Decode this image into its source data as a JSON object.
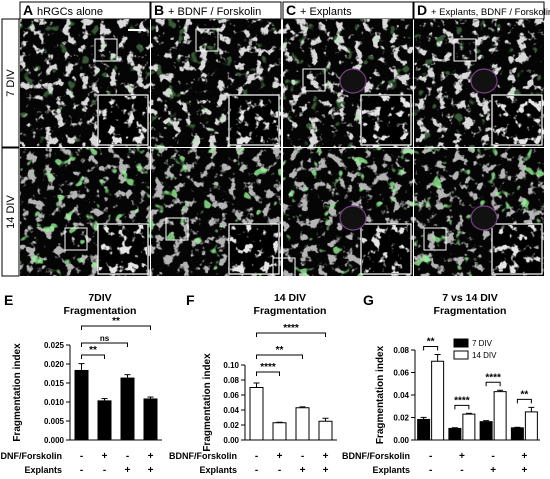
{
  "micrograph": {
    "columns": [
      {
        "letter": "A",
        "title": "hRGCs alone"
      },
      {
        "letter": "B",
        "title": "+ BDNF / Forskolin"
      },
      {
        "letter": "C",
        "title": "+ Explants"
      },
      {
        "letter": "D",
        "title": "+ Explants, BDNF / Forskolin"
      }
    ],
    "rows": [
      "7 DIV",
      "14 DIV"
    ]
  },
  "conditions": {
    "row1_label": "BDNF/Forskolin",
    "row2_label": "Explants",
    "row1_signs": [
      "-",
      "+",
      "-",
      "+"
    ],
    "row2_signs": [
      "-",
      "-",
      "+",
      "+"
    ]
  },
  "chart_data": [
    {
      "type": "bar",
      "panel": "E",
      "title": "7DIV",
      "subtitle": "Fragmentation",
      "ylabel": "Fragmentation index",
      "ylim": [
        0,
        0.025
      ],
      "yticks": [
        "0.000",
        "0.005",
        "0.010",
        "0.015",
        "0.020",
        "0.025"
      ],
      "values": [
        0.0183,
        0.0103,
        0.0163,
        0.0108
      ],
      "errors": [
        0.0018,
        0.0006,
        0.0009,
        0.0005
      ],
      "fill": "#000000",
      "significance": [
        {
          "from": 0,
          "to": 1,
          "label": "**"
        },
        {
          "from": 0,
          "to": 2,
          "label": "ns"
        },
        {
          "from": 0,
          "to": 3,
          "label": "**"
        }
      ]
    },
    {
      "type": "bar",
      "panel": "F",
      "title": "14 DIV",
      "subtitle": "Fragmentation",
      "ylabel": "Fragmentation index",
      "ylim": [
        0,
        0.1
      ],
      "yticks": [
        "0.00",
        "0.02",
        "0.04",
        "0.06",
        "0.08",
        "0.10"
      ],
      "values": [
        0.07,
        0.023,
        0.043,
        0.025
      ],
      "errors": [
        0.006,
        0.0007,
        0.0012,
        0.004
      ],
      "fill": "#ffffff",
      "significance": [
        {
          "from": 0,
          "to": 1,
          "label": "****"
        },
        {
          "from": 0,
          "to": 2,
          "label": "**"
        },
        {
          "from": 0,
          "to": 3,
          "label": "****"
        }
      ]
    },
    {
      "type": "bar",
      "panel": "G",
      "title": "7 vs 14 DIV",
      "subtitle": "Fragmentation",
      "ylabel": "Fragmentation index",
      "ylim": [
        0,
        0.08
      ],
      "yticks": [
        "0.00",
        "0.02",
        "0.04",
        "0.06",
        "0.08"
      ],
      "series": [
        {
          "name": "7 DIV",
          "fill": "#000000",
          "values": [
            0.0183,
            0.0103,
            0.0163,
            0.0108
          ],
          "errors": [
            0.0018,
            0.0006,
            0.0009,
            0.0005
          ]
        },
        {
          "name": "14 DIV",
          "fill": "#ffffff",
          "values": [
            0.07,
            0.023,
            0.043,
            0.025
          ],
          "errors": [
            0.006,
            0.0007,
            0.0012,
            0.004
          ]
        }
      ],
      "significance": [
        "**",
        "****",
        "****",
        "**"
      ]
    }
  ]
}
